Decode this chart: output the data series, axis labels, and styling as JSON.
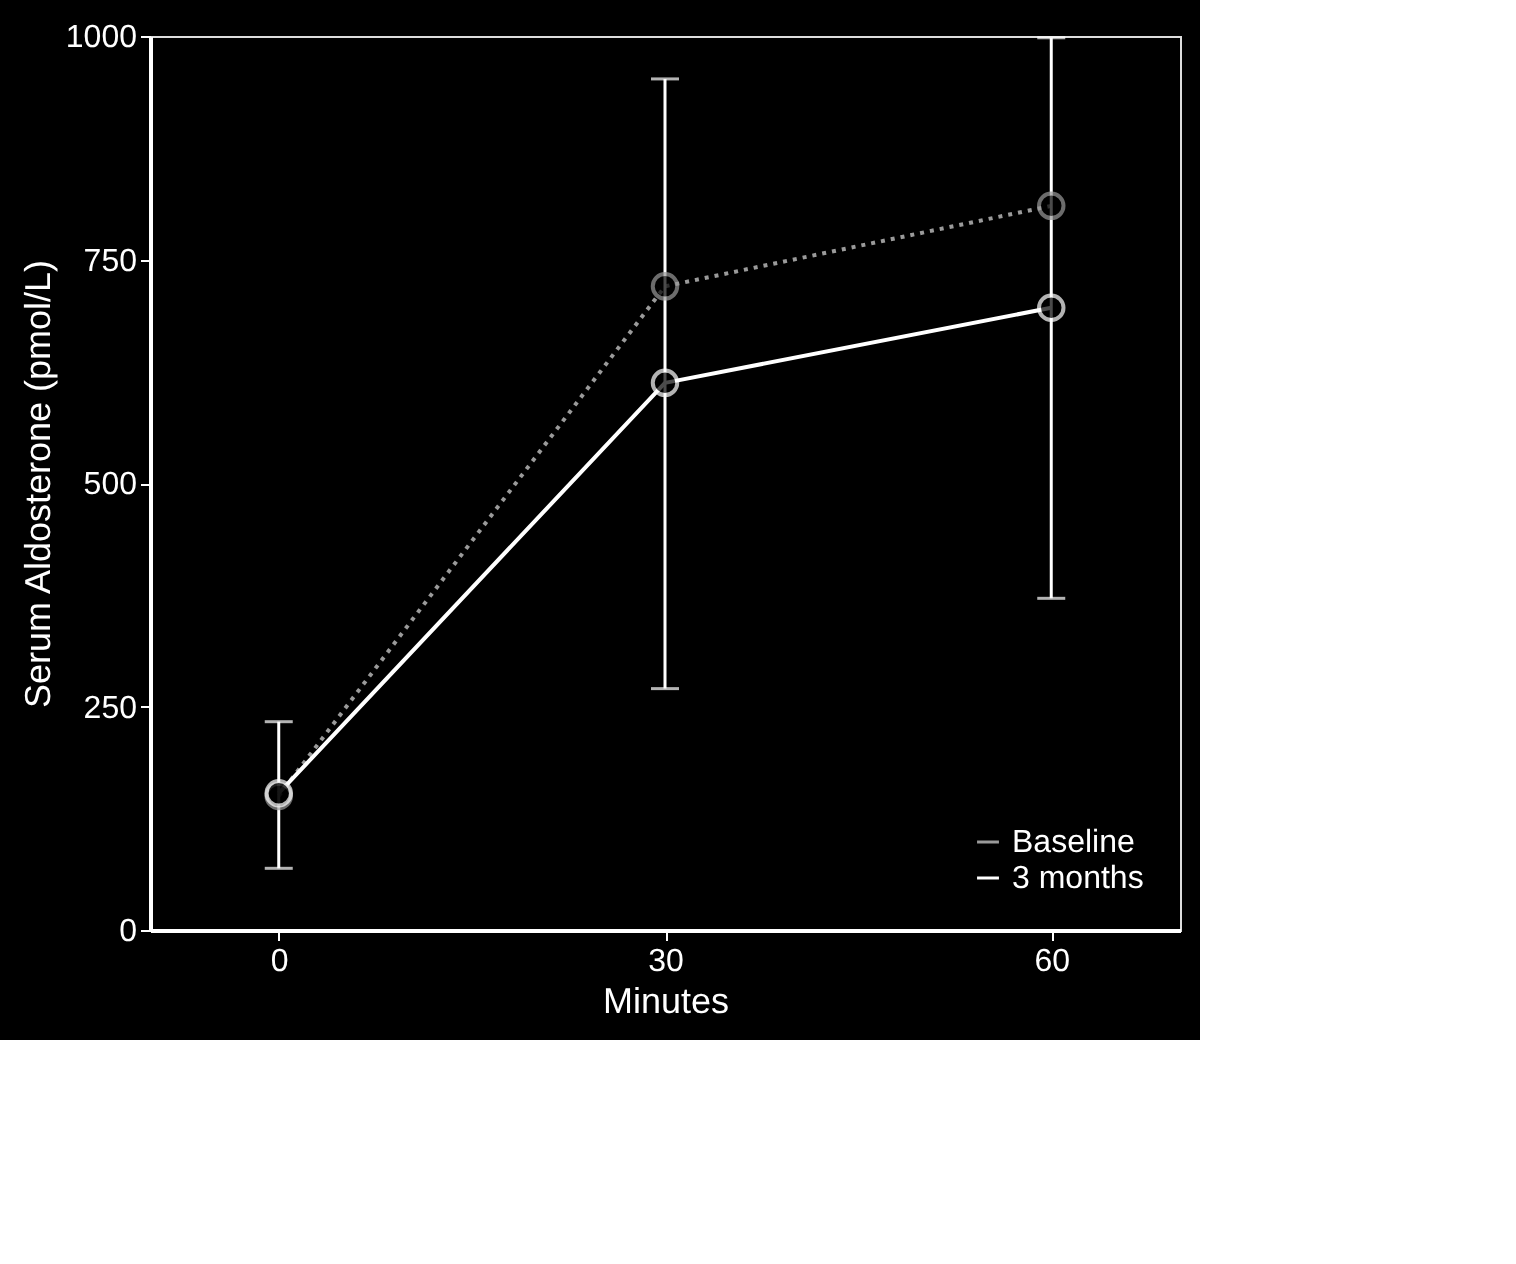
{
  "chart_data": {
    "type": "line",
    "xlabel": "Minutes",
    "ylabel": "Serum Aldosterone (pmol/L)",
    "x": [
      0,
      30,
      60
    ],
    "series": [
      {
        "name": "Baseline",
        "color": "#9a9a9a",
        "values": [
          150,
          720,
          810
        ],
        "line_style": "dotted",
        "marker": "circle"
      },
      {
        "name": "3 months",
        "color": "#ffffff",
        "values": [
          153,
          612,
          696
        ],
        "errors": [
          [
            69,
            233
          ],
          [
            270,
            952
          ],
          [
            371,
            998
          ]
        ],
        "line_style": "solid",
        "marker": "circle"
      }
    ],
    "xlim": [
      -10,
      70
    ],
    "xticks": [
      0,
      30,
      60
    ],
    "ylim": [
      0,
      1000
    ],
    "yticks": [
      0,
      250,
      500,
      750,
      1000
    ],
    "grid": false,
    "legend": "bottom right"
  }
}
